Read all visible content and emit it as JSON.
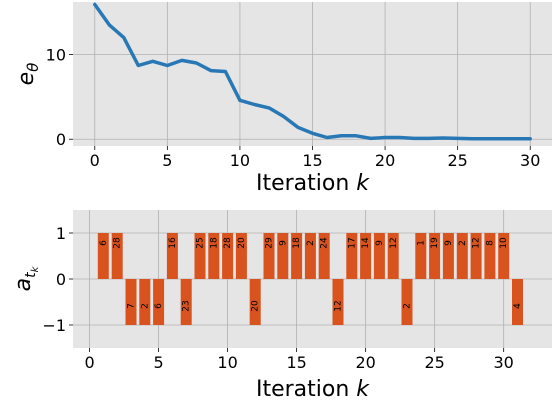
{
  "chart_data": [
    {
      "type": "line",
      "xlabel": "Iteration",
      "xlabel_var": "k",
      "ylabel": "e",
      "ylabel_sub": "θ",
      "xlim": [
        -1.5,
        31.5
      ],
      "ylim": [
        -0.8,
        16.2
      ],
      "xticks": [
        0,
        5,
        10,
        15,
        20,
        25,
        30
      ],
      "yticks": [
        0,
        10
      ],
      "grid": true,
      "color": "#2878b5",
      "series": [
        {
          "x": [
            0,
            1,
            2,
            3,
            4,
            5,
            6,
            7,
            8,
            9,
            10,
            11,
            12,
            13,
            14,
            15,
            16,
            17,
            18,
            19,
            20,
            21,
            22,
            23,
            24,
            25,
            26,
            27,
            28,
            29,
            30
          ],
          "values": [
            15.9,
            13.5,
            12.0,
            8.7,
            9.2,
            8.7,
            9.3,
            9.0,
            8.1,
            8.0,
            4.6,
            4.1,
            3.7,
            2.7,
            1.4,
            0.7,
            0.2,
            0.4,
            0.4,
            0.1,
            0.2,
            0.2,
            0.1,
            0.1,
            0.15,
            0.1,
            0.05,
            0.05,
            0.05,
            0.05,
            0.05
          ]
        }
      ]
    },
    {
      "type": "bar",
      "xlabel": "Iteration",
      "xlabel_var": "k",
      "ylabel": "a",
      "ylabel_sub": "t",
      "ylabel_subsub": "k",
      "xlim": [
        -1.2,
        33.5
      ],
      "ylim": [
        -1.5,
        1.5
      ],
      "xticks": [
        0,
        5,
        10,
        15,
        20,
        25,
        30
      ],
      "yticks": [
        1,
        0,
        -1
      ],
      "ytick_labels": [
        "1",
        "0",
        "−1"
      ],
      "grid": true,
      "color": "#d9531e",
      "x": [
        1,
        2,
        3,
        4,
        5,
        6,
        7,
        8,
        9,
        10,
        11,
        12,
        13,
        14,
        15,
        16,
        17,
        18,
        19,
        20,
        21,
        22,
        23,
        24,
        25,
        26,
        27,
        28,
        29,
        30,
        31
      ],
      "values": [
        1,
        1,
        -1,
        -1,
        -1,
        1,
        -1,
        1,
        1,
        1,
        1,
        -1,
        1,
        1,
        1,
        1,
        1,
        -1,
        1,
        1,
        1,
        1,
        -1,
        1,
        1,
        1,
        1,
        1,
        1,
        1,
        -1
      ],
      "labels": [
        "6",
        "28",
        "7",
        "2",
        "6",
        "16",
        "23",
        "25",
        "18",
        "28",
        "20",
        "20",
        "29",
        "9",
        "18",
        "2",
        "24",
        "12",
        "17",
        "14",
        "9",
        "12",
        "2",
        "1",
        "19",
        "9",
        "2",
        "12",
        "8",
        "10",
        "4"
      ]
    }
  ]
}
